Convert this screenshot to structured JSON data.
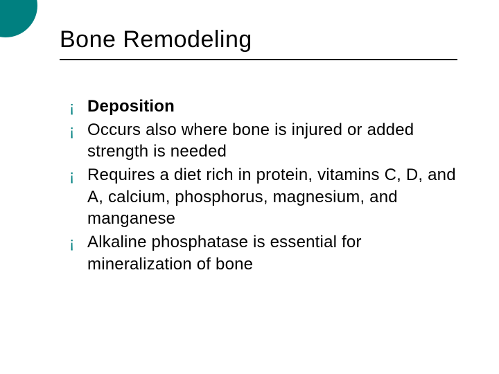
{
  "slide": {
    "title": "Bone Remodeling",
    "accent_color": "#008080",
    "title_color": "#000000",
    "title_fontsize": 34,
    "body_fontsize": 24,
    "underline_color": "#000000",
    "background_color": "#ffffff",
    "bullet_glyph": "¡",
    "bullets": [
      {
        "text": "Deposition",
        "bold": true
      },
      {
        "text": "Occurs also where bone is injured or added strength is needed",
        "bold": false
      },
      {
        "text": "Requires a diet rich in protein, vitamins C, D, and A, calcium, phosphorus, magnesium, and manganese",
        "bold": false
      },
      {
        "text": "Alkaline phosphatase is essential for mineralization of bone",
        "bold": false
      }
    ]
  }
}
